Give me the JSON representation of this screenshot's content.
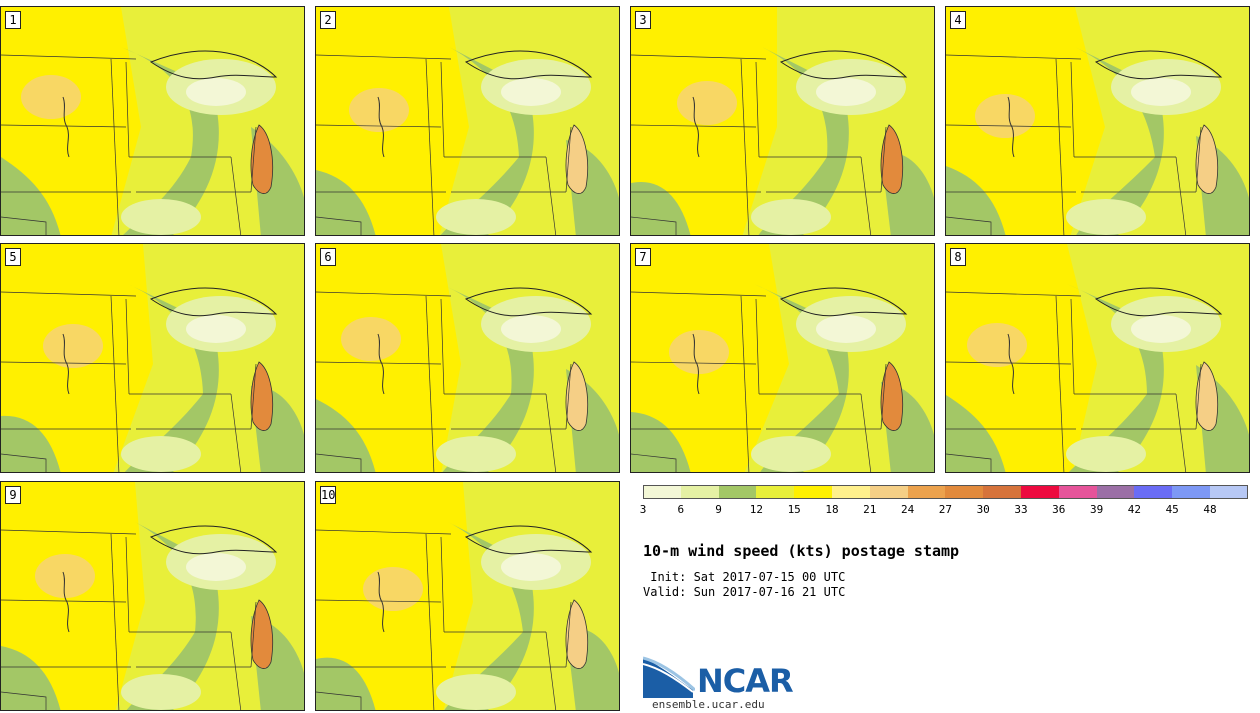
{
  "title": "10-m wind speed (kts) postage stamp",
  "init": " Init: Sat 2017-07-15 00 UTC",
  "valid": "Valid: Sun 2017-07-16 21 UTC",
  "logo": {
    "text": "NCAR",
    "url": "ensemble.ucar.edu"
  },
  "panels": [
    "1",
    "2",
    "3",
    "4",
    "5",
    "6",
    "7",
    "8",
    "9",
    "10"
  ],
  "colorbar": {
    "ticks": [
      "3",
      "6",
      "9",
      "12",
      "15",
      "18",
      "21",
      "24",
      "27",
      "30",
      "33",
      "36",
      "39",
      "42",
      "45",
      "48"
    ],
    "colors": [
      "#f3f7d6",
      "#e5f1a4",
      "#a3c766",
      "#e8ef3a",
      "#fff000",
      "#fff08c",
      "#f5cf86",
      "#eca24d",
      "#e28a3c",
      "#d6733b",
      "#ed0a3f",
      "#e6549a",
      "#9b6fa6",
      "#6a6cf5",
      "#7d98f5",
      "#b7c8f5"
    ]
  },
  "map_colors": {
    "light": "#f3f7d6",
    "pale": "#e5f1a4",
    "green": "#a3c766",
    "lime": "#e8ef3a",
    "yellow": "#fff000",
    "tan": "#f5cf86",
    "orange": "#e28a3c"
  }
}
